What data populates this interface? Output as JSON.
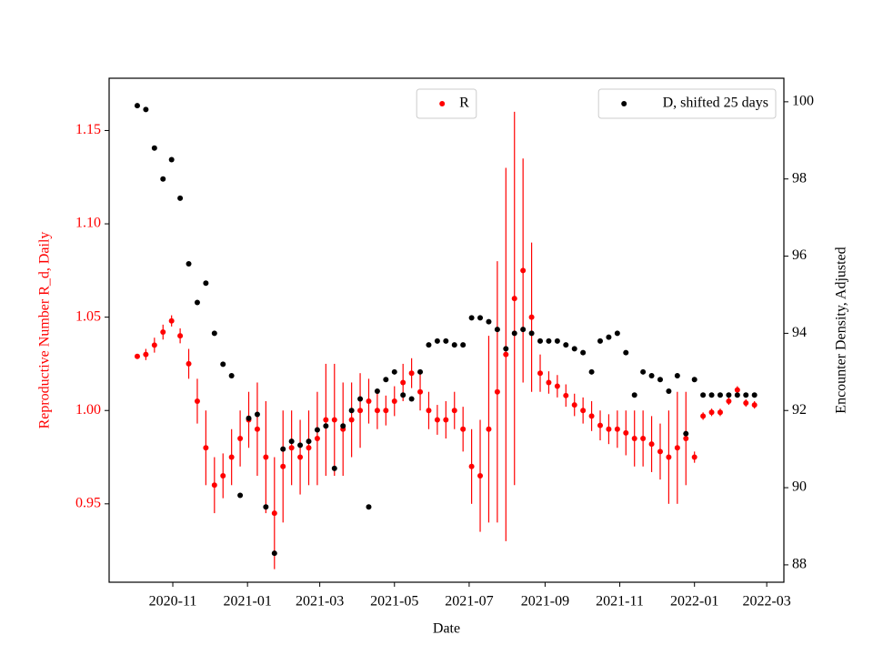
{
  "chart_data": {
    "type": "scatter",
    "x_label": "Date",
    "y_label": "Reproductive Number R_d, Daily",
    "y2_label": "Encounter Density, Adjusted",
    "xlim": [
      "2020-09-10",
      "2022-03-15"
    ],
    "xticks": [
      {
        "value": "2020-11-01",
        "label": "2020-11"
      },
      {
        "value": "2021-01-01",
        "label": "2021-01"
      },
      {
        "value": "2021-03-01",
        "label": "2021-03"
      },
      {
        "value": "2021-05-01",
        "label": "2021-05"
      },
      {
        "value": "2021-07-01",
        "label": "2021-07"
      },
      {
        "value": "2021-09-01",
        "label": "2021-09"
      },
      {
        "value": "2021-11-01",
        "label": "2021-11"
      },
      {
        "value": "2022-01-01",
        "label": "2022-01"
      },
      {
        "value": "2022-03-01",
        "label": "2022-03"
      }
    ],
    "ylim": [
      0.908,
      1.178
    ],
    "yticks": [
      0.95,
      {
        "value": 1.0,
        "label": "1.00"
      },
      1.05,
      {
        "value": 1.1,
        "label": "1.10"
      },
      1.15
    ],
    "y2lim": [
      87.55,
      100.61
    ],
    "y2ticks": [
      88,
      90,
      92,
      94,
      96,
      98,
      100
    ],
    "y_label_color": "#ff0000",
    "x": [
      "2020-10-03",
      "2020-10-10",
      "2020-10-17",
      "2020-10-24",
      "2020-10-31",
      "2020-11-07",
      "2020-11-14",
      "2020-11-21",
      "2020-11-28",
      "2020-12-05",
      "2020-12-12",
      "2020-12-19",
      "2020-12-26",
      "2021-01-02",
      "2021-01-09",
      "2021-01-16",
      "2021-01-23",
      "2021-01-30",
      "2021-02-06",
      "2021-02-13",
      "2021-02-20",
      "2021-02-27",
      "2021-03-06",
      "2021-03-13",
      "2021-03-20",
      "2021-03-27",
      "2021-04-03",
      "2021-04-10",
      "2021-04-17",
      "2021-04-24",
      "2021-05-01",
      "2021-05-08",
      "2021-05-15",
      "2021-05-22",
      "2021-05-29",
      "2021-06-05",
      "2021-06-12",
      "2021-06-19",
      "2021-06-26",
      "2021-07-03",
      "2021-07-10",
      "2021-07-17",
      "2021-07-24",
      "2021-07-31",
      "2021-08-07",
      "2021-08-14",
      "2021-08-21",
      "2021-08-28",
      "2021-09-04",
      "2021-09-11",
      "2021-09-18",
      "2021-09-25",
      "2021-10-02",
      "2021-10-09",
      "2021-10-16",
      "2021-10-23",
      "2021-10-30",
      "2021-11-06",
      "2021-11-13",
      "2021-11-20",
      "2021-11-27",
      "2021-12-04",
      "2021-12-11",
      "2021-12-18",
      "2021-12-25",
      "2022-01-01",
      "2022-01-08",
      "2022-01-15",
      "2022-01-22",
      "2022-01-29",
      "2022-02-05",
      "2022-02-12",
      "2022-02-19"
    ],
    "series": [
      {
        "name": "R",
        "color": "#ff0000",
        "legend": "upper center",
        "values": [
          1.029,
          1.03,
          1.035,
          1.042,
          1.048,
          1.04,
          1.025,
          1.005,
          0.98,
          0.96,
          0.965,
          0.975,
          0.985,
          0.995,
          0.99,
          0.975,
          0.945,
          0.97,
          0.98,
          0.975,
          0.98,
          0.985,
          0.995,
          0.995,
          0.99,
          0.995,
          1.0,
          1.005,
          1.0,
          1.0,
          1.005,
          1.015,
          1.02,
          1.01,
          1.0,
          0.995,
          0.995,
          1.0,
          0.99,
          0.97,
          0.965,
          0.99,
          1.01,
          1.03,
          1.06,
          1.075,
          1.05,
          1.02,
          1.015,
          1.013,
          1.008,
          1.003,
          1.0,
          0.997,
          0.992,
          0.99,
          0.99,
          0.988,
          0.985,
          0.985,
          0.982,
          0.978,
          0.975,
          0.98,
          0.985,
          0.975,
          0.997,
          0.999,
          0.999,
          1.005,
          1.011,
          1.004,
          1.003
        ],
        "errors": [
          0.001,
          0.003,
          0.004,
          0.004,
          0.003,
          0.004,
          0.008,
          0.012,
          0.02,
          0.015,
          0.012,
          0.015,
          0.015,
          0.015,
          0.025,
          0.03,
          0.03,
          0.03,
          0.02,
          0.02,
          0.02,
          0.025,
          0.03,
          0.03,
          0.025,
          0.02,
          0.02,
          0.012,
          0.01,
          0.008,
          0.008,
          0.01,
          0.008,
          0.01,
          0.01,
          0.008,
          0.01,
          0.01,
          0.012,
          0.02,
          0.03,
          0.05,
          0.07,
          0.1,
          0.1,
          0.06,
          0.04,
          0.01,
          0.006,
          0.006,
          0.006,
          0.006,
          0.007,
          0.008,
          0.008,
          0.008,
          0.01,
          0.012,
          0.015,
          0.015,
          0.015,
          0.015,
          0.025,
          0.03,
          0.025,
          0.003,
          0.002,
          0.002,
          0.002,
          0.002,
          0.002,
          0.002,
          0.002
        ]
      },
      {
        "name": "D, shifted 25 days",
        "color": "#000000",
        "axis": "y2",
        "legend": "upper right",
        "values": [
          99.9,
          99.8,
          98.8,
          98.0,
          98.5,
          97.5,
          95.8,
          94.8,
          95.3,
          94.0,
          93.2,
          92.9,
          89.8,
          91.8,
          91.9,
          89.5,
          88.3,
          91.0,
          91.2,
          91.1,
          91.2,
          91.5,
          91.6,
          90.5,
          91.6,
          92.0,
          92.3,
          89.5,
          92.5,
          92.8,
          93.0,
          92.4,
          92.3,
          93.0,
          93.7,
          93.8,
          93.8,
          93.7,
          93.7,
          94.4,
          94.4,
          94.3,
          94.1,
          93.6,
          94.0,
          94.1,
          94.0,
          93.8,
          93.8,
          93.8,
          93.7,
          93.6,
          93.5,
          93.0,
          93.8,
          93.9,
          94.0,
          93.5,
          92.4,
          93.0,
          92.9,
          92.8,
          92.5,
          92.9,
          91.4,
          92.8,
          92.4,
          92.4,
          92.4,
          92.4,
          92.4,
          92.4,
          92.4
        ]
      }
    ]
  }
}
